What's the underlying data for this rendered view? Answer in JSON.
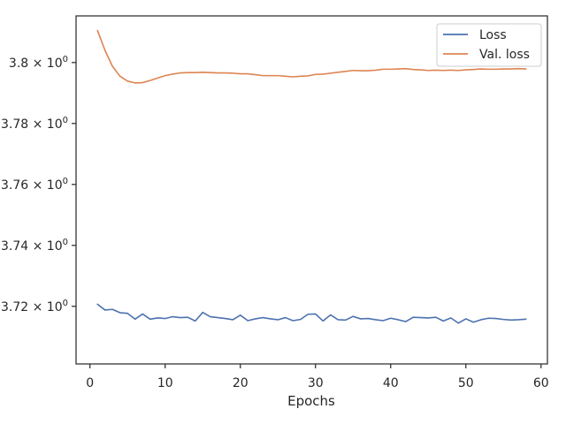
{
  "chart_data": {
    "type": "line",
    "title": "",
    "xlabel": "Epochs",
    "ylabel": "",
    "xlim": [
      -1.85,
      60.85
    ],
    "ylim": [
      3.7011,
      3.8153
    ],
    "y_scale": "log",
    "grid": false,
    "legend_position": "top-right",
    "x_ticks": [
      0,
      10,
      20,
      30,
      40,
      50,
      60
    ],
    "x_tick_labels": [
      "0",
      "10",
      "20",
      "30",
      "40",
      "50",
      "60"
    ],
    "y_ticks": [
      3.72,
      3.74,
      3.76,
      3.78,
      3.8
    ],
    "y_tick_labels": [
      {
        "mantissa": "3.72",
        "base": "10",
        "exp": "0"
      },
      {
        "mantissa": "3.74",
        "base": "10",
        "exp": "0"
      },
      {
        "mantissa": "3.76",
        "base": "10",
        "exp": "0"
      },
      {
        "mantissa": "3.78",
        "base": "10",
        "exp": "0"
      },
      {
        "mantissa": "3.8",
        "base": "10",
        "exp": "0"
      }
    ],
    "x": [
      1,
      2,
      3,
      4,
      5,
      6,
      7,
      8,
      9,
      10,
      11,
      12,
      13,
      14,
      15,
      16,
      17,
      18,
      19,
      20,
      21,
      22,
      23,
      24,
      25,
      26,
      27,
      28,
      29,
      30,
      31,
      32,
      33,
      34,
      35,
      36,
      37,
      38,
      39,
      40,
      41,
      42,
      43,
      44,
      45,
      46,
      47,
      48,
      49,
      50,
      51,
      52,
      53,
      54,
      55,
      56,
      57,
      58
    ],
    "series": [
      {
        "name": "Loss",
        "color": "#4c72b0",
        "values": [
          3.7207,
          3.7188,
          3.719,
          3.7179,
          3.7177,
          3.7158,
          3.7175,
          3.7158,
          3.7162,
          3.716,
          3.7166,
          3.7163,
          3.7164,
          3.7152,
          3.718,
          3.7166,
          3.7163,
          3.716,
          3.7156,
          3.7171,
          3.7153,
          3.7159,
          3.7163,
          3.7159,
          3.7156,
          3.7163,
          3.7153,
          3.7157,
          3.7174,
          3.7175,
          3.7152,
          3.7172,
          3.7156,
          3.7155,
          3.7167,
          3.7159,
          3.716,
          3.7156,
          3.7153,
          3.7161,
          3.7156,
          3.715,
          3.7164,
          3.7163,
          3.7162,
          3.7164,
          3.7152,
          3.7162,
          3.7145,
          3.7159,
          3.7148,
          3.7156,
          3.7161,
          3.716,
          3.7157,
          3.7155,
          3.7156,
          3.7158
        ]
      },
      {
        "name": "Val. loss",
        "color": "#dd8452",
        "values": [
          3.8105,
          3.804,
          3.7987,
          3.7955,
          3.7939,
          3.7933,
          3.7934,
          3.7941,
          3.7949,
          3.7957,
          3.7962,
          3.7966,
          3.7967,
          3.7967,
          3.7968,
          3.7967,
          3.7966,
          3.7966,
          3.7965,
          3.7963,
          3.7963,
          3.796,
          3.7957,
          3.7957,
          3.7957,
          3.7955,
          3.7953,
          3.7955,
          3.7956,
          3.7961,
          3.7962,
          3.7965,
          3.7968,
          3.7971,
          3.7974,
          3.7973,
          3.7973,
          3.7975,
          3.7978,
          3.7978,
          3.7979,
          3.798,
          3.7977,
          3.7976,
          3.7974,
          3.7975,
          3.7974,
          3.7975,
          3.7974,
          3.7976,
          3.7977,
          3.7979,
          3.7978,
          3.7978,
          3.7979,
          3.7979,
          3.798,
          3.7979
        ]
      }
    ]
  }
}
